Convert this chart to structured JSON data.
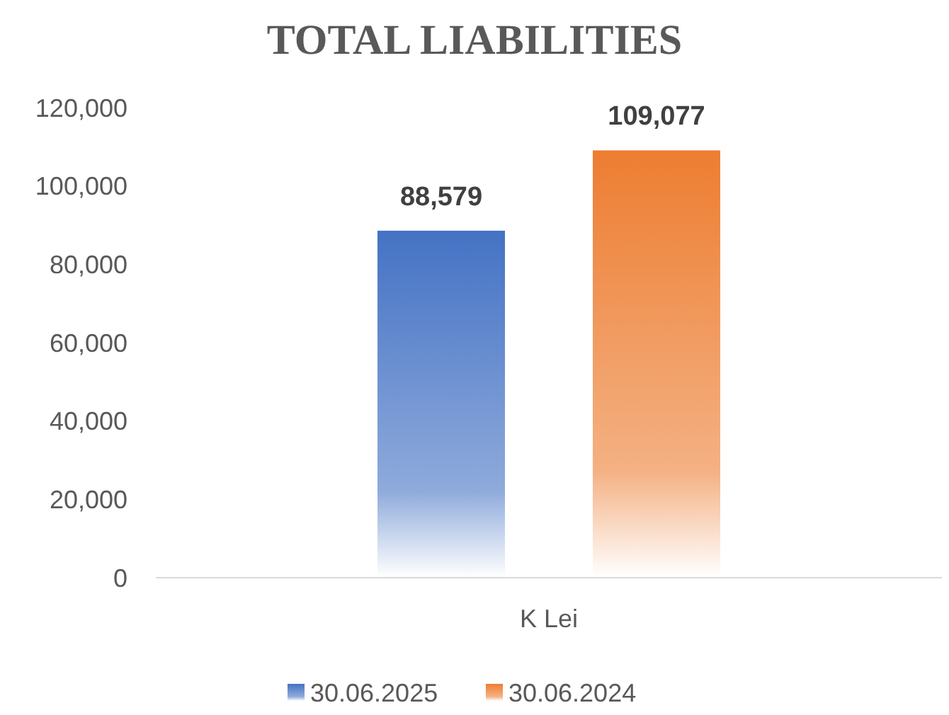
{
  "chart_data": {
    "type": "bar",
    "title": "TOTAL LIABILITIES",
    "categories": [
      "K Lei"
    ],
    "series": [
      {
        "name": "30.06.2025",
        "color": "#4472c4",
        "values": [
          88579
        ],
        "value_labels": [
          "88,579"
        ]
      },
      {
        "name": "30.06.2024",
        "color": "#ed7d31",
        "values": [
          109077
        ],
        "value_labels": [
          "109,077"
        ]
      }
    ],
    "ylim": [
      0,
      120000
    ],
    "yticks": [
      {
        "value": 0,
        "label": "0"
      },
      {
        "value": 20000,
        "label": "20,000"
      },
      {
        "value": 40000,
        "label": "40,000"
      },
      {
        "value": 60000,
        "label": "60,000"
      },
      {
        "value": 80000,
        "label": "80,000"
      },
      {
        "value": 100000,
        "label": "100,000"
      },
      {
        "value": 120000,
        "label": "120,000"
      }
    ],
    "grid": false,
    "legend": "bottom"
  }
}
